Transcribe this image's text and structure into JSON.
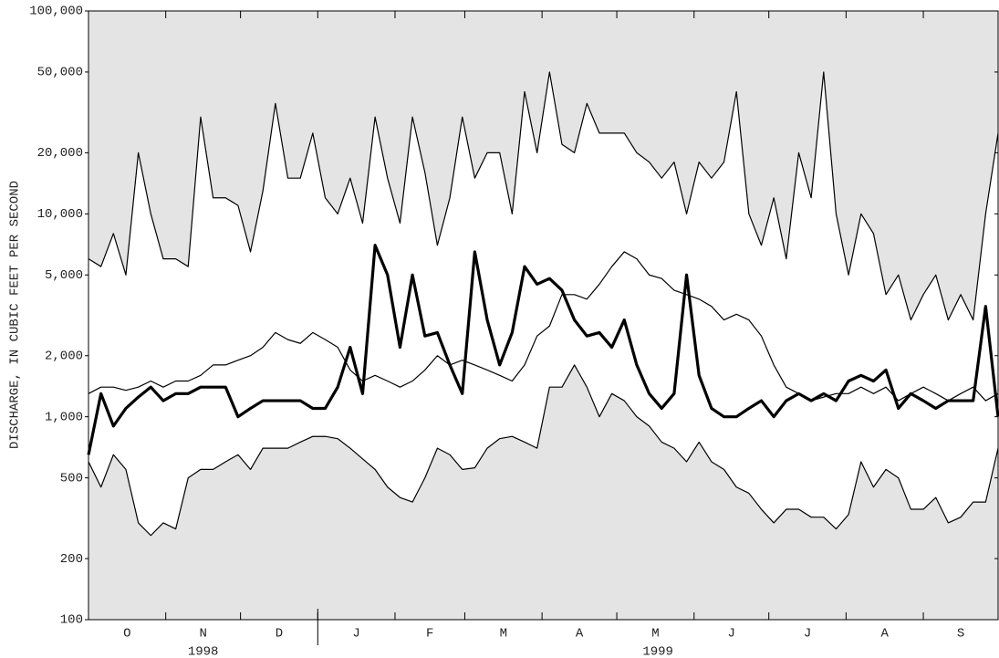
{
  "chart_data": {
    "type": "line",
    "y_label": "DISCHARGE, IN CUBIC FEET PER SECOND",
    "log_scale": true,
    "background": "#e4e4e4",
    "band_fill": "#ffffff",
    "x": [
      0,
      5,
      10,
      15,
      20,
      25,
      30,
      35,
      40,
      45,
      50,
      55,
      60,
      65,
      70,
      75,
      80,
      85,
      90,
      95,
      100,
      105,
      110,
      115,
      120,
      125,
      130,
      135,
      140,
      145,
      150,
      155,
      160,
      165,
      170,
      175,
      180,
      185,
      190,
      195,
      200,
      205,
      210,
      215,
      220,
      225,
      230,
      235,
      240,
      245,
      250,
      255,
      260,
      265,
      270,
      275,
      280,
      285,
      290,
      295,
      300,
      305,
      310,
      315,
      320,
      325,
      330,
      335,
      340,
      345,
      350,
      355,
      360,
      365
    ],
    "xlim": [
      0,
      365
    ],
    "xticks": [
      0,
      31,
      61,
      92,
      123,
      151,
      182,
      212,
      243,
      273,
      304,
      335,
      365
    ],
    "months": [
      "O",
      "N",
      "D",
      "J",
      "F",
      "M",
      "A",
      "M",
      "J",
      "J",
      "A",
      "S"
    ],
    "years": [
      "1998",
      "1999"
    ],
    "year_break": 92,
    "ylim": [
      100,
      100000
    ],
    "yticks": [
      100,
      200,
      500,
      {
        "value": 1000,
        "label": "1,000"
      },
      {
        "value": 2000,
        "label": "2,000"
      },
      {
        "value": 5000,
        "label": "5,000"
      },
      {
        "value": 10000,
        "label": "10,000"
      },
      {
        "value": 20000,
        "label": "20,000"
      },
      {
        "value": 50000,
        "label": "50,000"
      },
      {
        "value": 100000,
        "label": "100,000"
      }
    ],
    "series": [
      {
        "color": "#000000",
        "width": 1.2,
        "values": [
          6000,
          5500,
          8000,
          5000,
          20000,
          10000,
          6000,
          6000,
          5500,
          30000,
          12000,
          12000,
          11000,
          6500,
          13000,
          35000,
          15000,
          15000,
          25000,
          12000,
          10000,
          15000,
          9000,
          30000,
          15000,
          9000,
          30000,
          16000,
          7000,
          12000,
          30000,
          15000,
          20000,
          20000,
          10000,
          40000,
          20000,
          50000,
          22000,
          20000,
          35000,
          25000,
          25000,
          25000,
          20000,
          18000,
          15000,
          18000,
          10000,
          18000,
          15000,
          18000,
          40000,
          10000,
          7000,
          12000,
          6000,
          20000,
          12000,
          50000,
          10000,
          5000,
          10000,
          8000,
          4000,
          5000,
          3000,
          4000,
          5000,
          3000,
          4000,
          3000,
          10000,
          25000
        ]
      },
      {
        "color": "#000000",
        "width": 1.2,
        "values": [
          1300,
          1400,
          1400,
          1350,
          1400,
          1500,
          1400,
          1500,
          1500,
          1600,
          1800,
          1800,
          1900,
          2000,
          2200,
          2600,
          2400,
          2300,
          2600,
          2400,
          2200,
          1700,
          1500,
          1600,
          1500,
          1400,
          1500,
          1700,
          2000,
          1800,
          1900,
          1800,
          1700,
          1600,
          1500,
          1800,
          2500,
          2800,
          4000,
          4000,
          3800,
          4500,
          5500,
          6500,
          6000,
          5000,
          4800,
          4200,
          4000,
          3800,
          3500,
          3000,
          3200,
          3000,
          2500,
          1800,
          1400,
          1300,
          1200,
          1250,
          1300,
          1300,
          1400,
          1300,
          1400,
          1200,
          1300,
          1400,
          1300,
          1200,
          1300,
          1400,
          1200,
          1300
        ]
      },
      {
        "color": "#000000",
        "width": 1.2,
        "values": [
          600,
          450,
          650,
          550,
          300,
          260,
          300,
          280,
          500,
          550,
          550,
          600,
          650,
          550,
          700,
          700,
          700,
          750,
          800,
          800,
          780,
          700,
          620,
          550,
          450,
          400,
          380,
          500,
          700,
          650,
          550,
          560,
          700,
          780,
          800,
          750,
          700,
          1400,
          1400,
          1800,
          1400,
          1000,
          1300,
          1200,
          1000,
          900,
          750,
          700,
          600,
          750,
          600,
          550,
          450,
          420,
          350,
          300,
          350,
          350,
          320,
          320,
          280,
          330,
          600,
          450,
          550,
          500,
          350,
          350,
          400,
          300,
          320,
          380,
          380,
          700
        ]
      },
      {
        "color": "#000000",
        "width": 3.2,
        "values": [
          650,
          1300,
          900,
          1100,
          1250,
          1400,
          1200,
          1300,
          1300,
          1400,
          1400,
          1400,
          1000,
          1100,
          1200,
          1200,
          1200,
          1200,
          1100,
          1100,
          1400,
          2200,
          1300,
          7000,
          5000,
          2200,
          5000,
          2500,
          2600,
          1800,
          1300,
          6500,
          3000,
          1800,
          2600,
          5500,
          4500,
          4800,
          4200,
          3000,
          2500,
          2600,
          2200,
          3000,
          1800,
          1300,
          1100,
          1300,
          5000,
          1600,
          1100,
          1000,
          1000,
          1100,
          1200,
          1000,
          1200,
          1300,
          1200,
          1300,
          1200,
          1500,
          1600,
          1500,
          1700,
          1100,
          1300,
          1200,
          1100,
          1200,
          1200,
          1200,
          3500,
          1000
        ]
      }
    ]
  }
}
